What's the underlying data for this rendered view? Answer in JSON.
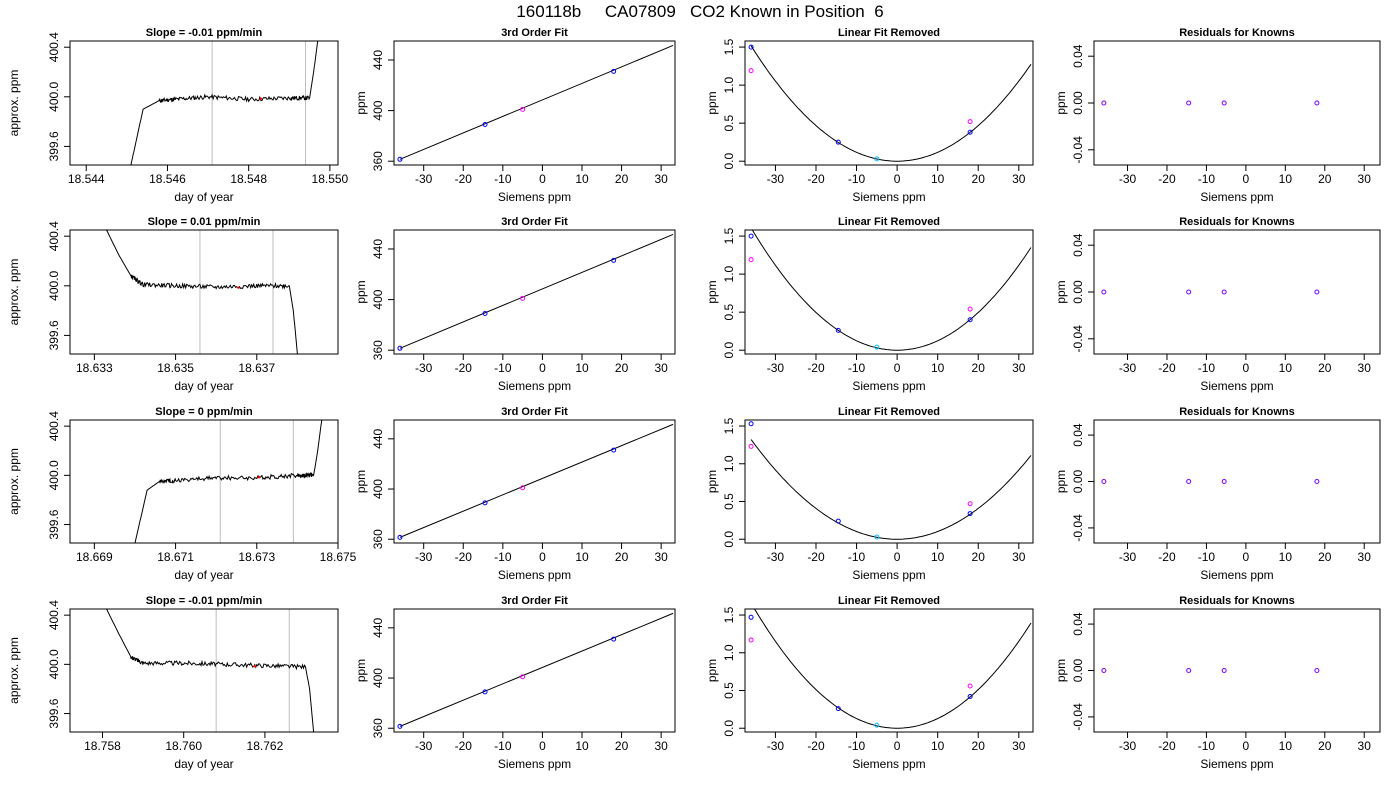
{
  "page_title": "160118b     CA07809   CO2 Known in Position  6",
  "colors": {
    "frame": "#000000",
    "trace": "#000000",
    "vline": "#bebebe",
    "point_blue": "#0000ff",
    "point_magenta": "#ff00ff",
    "point_cyan": "#00bfff",
    "point_red": "#ff0000"
  },
  "chart_data": [
    {
      "type": "line",
      "title": "Slope =  -0.01  ppm/min",
      "xlabel": "day of year",
      "ylabel": "approx. ppm",
      "xlim": [
        18.5436,
        18.5502
      ],
      "ylim": [
        399.45,
        400.45
      ],
      "xticks": [
        "18.544",
        "18.546",
        "18.548",
        "18.550"
      ],
      "yticks": [
        "399.6",
        "400.0",
        "400.4"
      ],
      "vlines": [
        18.5471,
        18.5494
      ],
      "style": "rising",
      "series": [
        {
          "x": [
            18.5451,
            18.5454,
            18.5458,
            18.5462,
            18.547,
            18.548,
            18.549,
            18.5495,
            18.5496,
            18.5497
          ],
          "y": [
            399.45,
            399.9,
            399.97,
            399.98,
            400.0,
            399.98,
            399.99,
            399.99,
            400.2,
            400.45
          ]
        }
      ]
    },
    {
      "type": "scatter",
      "title": "3rd Order Fit",
      "xlabel": "Siemens ppm",
      "ylabel": "ppm",
      "xlim": [
        -37.5,
        33.5
      ],
      "ylim": [
        357,
        455
      ],
      "xticks": [
        "-30",
        "-20",
        "-10",
        "0",
        "10",
        "20",
        "30"
      ],
      "yticks": [
        "360",
        "400",
        "440"
      ],
      "fit": [
        [
          -36,
          361.5
        ],
        [
          33,
          451.5
        ]
      ],
      "points": [
        {
          "x": -36,
          "y": 361.5
        },
        {
          "x": -14.5,
          "y": 389
        },
        {
          "x": -5,
          "y": 401
        },
        {
          "x": 18,
          "y": 431
        }
      ]
    },
    {
      "type": "scatter",
      "title": "Linear Fit Removed",
      "xlabel": "Siemens ppm",
      "ylabel": "ppm",
      "xlim": [
        -37.5,
        33.5
      ],
      "ylim": [
        -0.05,
        1.58
      ],
      "xticks": [
        "-30",
        "-20",
        "-10",
        "0",
        "10",
        "20",
        "30"
      ],
      "yticks": [
        "0.0",
        "0.5",
        "1.0",
        "1.5"
      ],
      "curve": {
        "coef": 0.00117,
        "range": [
          -36,
          33
        ]
      },
      "points": [
        {
          "x": -36,
          "y": 1.5
        },
        {
          "x": -36,
          "y": 1.19
        },
        {
          "x": -14.5,
          "y": 0.25
        },
        {
          "x": -5,
          "y": 0.03
        },
        {
          "x": 18,
          "y": 0.38
        },
        {
          "x": 18,
          "y": 0.52
        }
      ]
    },
    {
      "type": "scatter",
      "title": "Residuals for Knowns",
      "xlabel": "Siemens ppm",
      "ylabel": "ppm",
      "xlim": [
        -38.5,
        34
      ],
      "ylim": [
        -0.053,
        0.053
      ],
      "xticks": [
        "-30",
        "-20",
        "-10",
        "0",
        "10",
        "20",
        "30"
      ],
      "yticks": [
        "-0.04",
        "0.00",
        "0.04"
      ],
      "points": [
        {
          "x": -36,
          "y": 0
        },
        {
          "x": -14.5,
          "y": 0
        },
        {
          "x": -5.5,
          "y": 0
        },
        {
          "x": 18,
          "y": 0
        }
      ]
    },
    {
      "type": "line",
      "title": "Slope =  0.01  ppm/min",
      "xlabel": "day of year",
      "ylabel": "approx. ppm",
      "xlim": [
        18.6324,
        18.639
      ],
      "ylim": [
        399.45,
        400.45
      ],
      "xticks": [
        "18.633",
        "18.635",
        "18.637"
      ],
      "yticks": [
        "399.6",
        "400.0",
        "400.4"
      ],
      "vlines": [
        18.6356,
        18.6374
      ],
      "style": "falling",
      "series": [
        {
          "x": [
            18.6333,
            18.6336,
            18.6339,
            18.6342,
            18.635,
            18.636,
            18.637,
            18.6378,
            18.6379,
            18.638
          ],
          "y": [
            400.45,
            400.25,
            400.08,
            400.01,
            400.0,
            399.99,
            400.0,
            400.0,
            399.8,
            399.45
          ]
        }
      ]
    },
    {
      "type": "scatter",
      "title": "3rd Order Fit",
      "xlabel": "Siemens ppm",
      "ylabel": "ppm",
      "xlim": [
        -37.5,
        33.5
      ],
      "ylim": [
        357,
        455
      ],
      "xticks": [
        "-30",
        "-20",
        "-10",
        "0",
        "10",
        "20",
        "30"
      ],
      "yticks": [
        "360",
        "400",
        "440"
      ],
      "fit": [
        [
          -36,
          361.5
        ],
        [
          33,
          451.5
        ]
      ],
      "points": [
        {
          "x": -36,
          "y": 361.5
        },
        {
          "x": -14.5,
          "y": 389
        },
        {
          "x": -5,
          "y": 401
        },
        {
          "x": 18,
          "y": 431
        }
      ]
    },
    {
      "type": "scatter",
      "title": "Linear Fit Removed",
      "xlabel": "Siemens ppm",
      "ylabel": "ppm",
      "xlim": [
        -37.5,
        33.5
      ],
      "ylim": [
        -0.05,
        1.58
      ],
      "xticks": [
        "-30",
        "-20",
        "-10",
        "0",
        "10",
        "20",
        "30"
      ],
      "yticks": [
        "0.0",
        "0.5",
        "1.0",
        "1.5"
      ],
      "curve": {
        "coef": 0.00124,
        "range": [
          -36,
          33
        ]
      },
      "points": [
        {
          "x": -36,
          "y": 1.5
        },
        {
          "x": -36,
          "y": 1.19
        },
        {
          "x": -14.5,
          "y": 0.26
        },
        {
          "x": -5,
          "y": 0.04
        },
        {
          "x": 18,
          "y": 0.4
        },
        {
          "x": 18,
          "y": 0.54
        }
      ]
    },
    {
      "type": "scatter",
      "title": "Residuals for Knowns",
      "xlabel": "Siemens ppm",
      "ylabel": "ppm",
      "xlim": [
        -38.5,
        34
      ],
      "ylim": [
        -0.053,
        0.053
      ],
      "xticks": [
        "-30",
        "-20",
        "-10",
        "0",
        "10",
        "20",
        "30"
      ],
      "yticks": [
        "-0.04",
        "0.00",
        "0.04"
      ],
      "points": [
        {
          "x": -36,
          "y": 0
        },
        {
          "x": -14.5,
          "y": 0
        },
        {
          "x": -5.5,
          "y": 0
        },
        {
          "x": 18,
          "y": 0
        }
      ]
    },
    {
      "type": "line",
      "title": "Slope =  0  ppm/min",
      "xlabel": "day of year",
      "ylabel": "approx. ppm",
      "xlim": [
        18.6684,
        18.675
      ],
      "ylim": [
        399.45,
        400.45
      ],
      "xticks": [
        "18.669",
        "18.671",
        "18.673",
        "18.675"
      ],
      "yticks": [
        "399.6",
        "400.0",
        "400.4"
      ],
      "vlines": [
        18.6721,
        18.6739
      ],
      "style": "rising",
      "series": [
        {
          "x": [
            18.67,
            18.6703,
            18.6706,
            18.671,
            18.672,
            18.673,
            18.674,
            18.6744,
            18.6745,
            18.6746
          ],
          "y": [
            399.45,
            399.88,
            399.95,
            399.96,
            399.98,
            399.98,
            400.0,
            400.0,
            400.2,
            400.45
          ]
        }
      ]
    },
    {
      "type": "scatter",
      "title": "3rd Order Fit",
      "xlabel": "Siemens ppm",
      "ylabel": "ppm",
      "xlim": [
        -37.5,
        33.5
      ],
      "ylim": [
        357,
        455
      ],
      "xticks": [
        "-30",
        "-20",
        "-10",
        "0",
        "10",
        "20",
        "30"
      ],
      "yticks": [
        "360",
        "400",
        "440"
      ],
      "fit": [
        [
          -36,
          361.5
        ],
        [
          33,
          451.5
        ]
      ],
      "points": [
        {
          "x": -36,
          "y": 361.5
        },
        {
          "x": -14.5,
          "y": 389
        },
        {
          "x": -5,
          "y": 401
        },
        {
          "x": 18,
          "y": 431
        }
      ]
    },
    {
      "type": "scatter",
      "title": "Linear Fit Removed",
      "xlabel": "Siemens ppm",
      "ylabel": "ppm",
      "xlim": [
        -37.5,
        33.5
      ],
      "ylim": [
        -0.05,
        1.58
      ],
      "xticks": [
        "-30",
        "-20",
        "-10",
        "0",
        "10",
        "20",
        "30"
      ],
      "yticks": [
        "0.0",
        "0.5",
        "1.0",
        "1.5"
      ],
      "curve": {
        "coef": 0.00102,
        "range": [
          -36,
          33
        ]
      },
      "points": [
        {
          "x": -36,
          "y": 1.53
        },
        {
          "x": -36,
          "y": 1.23
        },
        {
          "x": -14.5,
          "y": 0.24
        },
        {
          "x": -5,
          "y": 0.03
        },
        {
          "x": 18,
          "y": 0.34
        },
        {
          "x": 18,
          "y": 0.47
        }
      ]
    },
    {
      "type": "scatter",
      "title": "Residuals for Knowns",
      "xlabel": "Siemens ppm",
      "ylabel": "ppm",
      "xlim": [
        -38.5,
        34
      ],
      "ylim": [
        -0.053,
        0.053
      ],
      "xticks": [
        "-30",
        "-20",
        "-10",
        "0",
        "10",
        "20",
        "30"
      ],
      "yticks": [
        "-0.04",
        "0.00",
        "0.04"
      ],
      "points": [
        {
          "x": -36,
          "y": 0
        },
        {
          "x": -14.5,
          "y": 0
        },
        {
          "x": -5.5,
          "y": 0
        },
        {
          "x": 18,
          "y": 0
        }
      ]
    },
    {
      "type": "line",
      "title": "Slope =  -0.01  ppm/min",
      "xlabel": "day of year",
      "ylabel": "approx. ppm",
      "xlim": [
        18.7572,
        18.7638
      ],
      "ylim": [
        399.45,
        400.45
      ],
      "xticks": [
        "18.758",
        "18.760",
        "18.762"
      ],
      "yticks": [
        "399.6",
        "400.0",
        "400.4"
      ],
      "vlines": [
        18.7608,
        18.7626
      ],
      "style": "falling",
      "series": [
        {
          "x": [
            18.7581,
            18.7584,
            18.7587,
            18.759,
            18.76,
            18.761,
            18.762,
            18.763,
            18.7631,
            18.7632
          ],
          "y": [
            400.45,
            400.25,
            400.06,
            400.01,
            400.01,
            400.0,
            399.99,
            399.98,
            399.8,
            399.45
          ]
        }
      ]
    },
    {
      "type": "scatter",
      "title": "3rd Order Fit",
      "xlabel": "Siemens ppm",
      "ylabel": "ppm",
      "xlim": [
        -37.5,
        33.5
      ],
      "ylim": [
        357,
        455
      ],
      "xticks": [
        "-30",
        "-20",
        "-10",
        "0",
        "10",
        "20",
        "30"
      ],
      "yticks": [
        "360",
        "400",
        "440"
      ],
      "fit": [
        [
          -36,
          361.5
        ],
        [
          33,
          451.5
        ]
      ],
      "points": [
        {
          "x": -36,
          "y": 361.5
        },
        {
          "x": -14.5,
          "y": 389
        },
        {
          "x": -5,
          "y": 401
        },
        {
          "x": 18,
          "y": 431
        }
      ]
    },
    {
      "type": "scatter",
      "title": "Linear Fit Removed",
      "xlabel": "Siemens ppm",
      "ylabel": "ppm",
      "xlim": [
        -37.5,
        33.5
      ],
      "ylim": [
        -0.05,
        1.58
      ],
      "xticks": [
        "-30",
        "-20",
        "-10",
        "0",
        "10",
        "20",
        "30"
      ],
      "yticks": [
        "0.0",
        "0.5",
        "1.0",
        "1.5"
      ],
      "curve": {
        "coef": 0.00128,
        "range": [
          -36,
          33
        ]
      },
      "points": [
        {
          "x": -36,
          "y": 1.47
        },
        {
          "x": -36,
          "y": 1.17
        },
        {
          "x": -14.5,
          "y": 0.26
        },
        {
          "x": -5,
          "y": 0.04
        },
        {
          "x": 18,
          "y": 0.42
        },
        {
          "x": 18,
          "y": 0.56
        }
      ]
    },
    {
      "type": "scatter",
      "title": "Residuals for Knowns",
      "xlabel": "Siemens ppm",
      "ylabel": "ppm",
      "xlim": [
        -38.5,
        34
      ],
      "ylim": [
        -0.053,
        0.053
      ],
      "xticks": [
        "-30",
        "-20",
        "-10",
        "0",
        "10",
        "20",
        "30"
      ],
      "yticks": [
        "-0.04",
        "0.00",
        "0.04"
      ],
      "points": [
        {
          "x": -36,
          "y": 0
        },
        {
          "x": -14.5,
          "y": 0
        },
        {
          "x": -5.5,
          "y": 0
        },
        {
          "x": 18,
          "y": 0
        }
      ]
    }
  ]
}
